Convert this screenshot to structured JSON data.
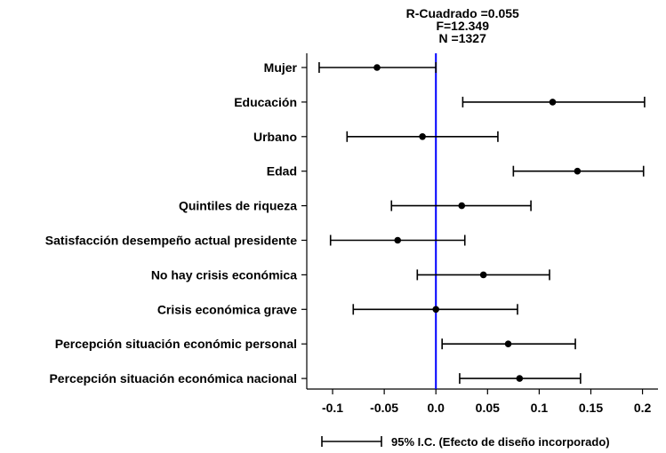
{
  "chart_data": {
    "type": "coefficient-plot",
    "title_lines": [
      "R-Cuadrado =0.055",
      "F=12.349",
      "N =1327"
    ],
    "categories": [
      "Mujer",
      "Educación",
      "Urbano",
      "Edad",
      "Quintiles de riqueza",
      "Satisfacción desempeño actual presidente",
      "No hay crisis económica",
      "Crisis económica grave",
      "Percepción situación económic personal",
      "Percepción situación económica nacional"
    ],
    "estimates": [
      -0.057,
      0.113,
      -0.013,
      0.137,
      0.025,
      -0.037,
      0.046,
      0.0,
      0.07,
      0.081
    ],
    "ci_low": [
      -0.113,
      0.026,
      -0.086,
      0.075,
      -0.043,
      -0.102,
      -0.018,
      -0.08,
      0.006,
      0.023
    ],
    "ci_high": [
      0.0,
      0.202,
      0.06,
      0.201,
      0.092,
      0.028,
      0.11,
      0.079,
      0.135,
      0.14
    ],
    "xlim": [
      -0.125,
      0.215
    ],
    "xticks": [
      "-0.1",
      "-0.05",
      "0.0",
      "0.05",
      "0.1",
      "0.15",
      "0.2"
    ],
    "xtick_values": [
      -0.1,
      -0.05,
      0.0,
      0.05,
      0.1,
      0.15,
      0.2
    ],
    "reference_line": 0.0,
    "reference_color": "#0000ff",
    "legend": "95% I.C. (Efecto de diseño incorporado)",
    "grid": false
  }
}
